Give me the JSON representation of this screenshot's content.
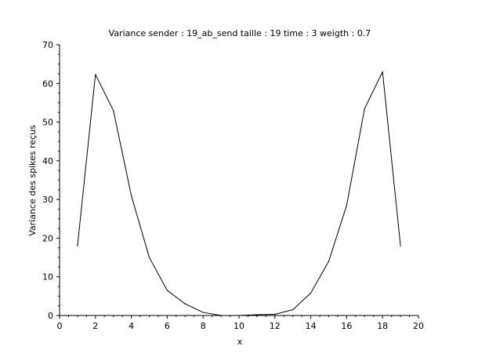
{
  "chart_data": {
    "type": "line",
    "title": "Variance sender : 19_ab_send taille : 19 time : 3 weigth : 0.7",
    "xlabel": "x",
    "ylabel": "Variance des spikes reçus",
    "xlim": [
      0,
      20
    ],
    "ylim": [
      0,
      70
    ],
    "xticks": [
      0,
      2,
      4,
      6,
      8,
      10,
      12,
      14,
      16,
      18,
      20
    ],
    "yticks": [
      0,
      10,
      20,
      30,
      40,
      50,
      60,
      70
    ],
    "grid": false,
    "series": [
      {
        "color": "#000000",
        "x": [
          1,
          2,
          3,
          4,
          5,
          6,
          7,
          8,
          9,
          10,
          11,
          12,
          13,
          14,
          15,
          16,
          17,
          18,
          19
        ],
        "y": [
          18,
          62.3,
          53,
          31,
          15,
          6.5,
          3,
          0.8,
          0,
          0,
          0.2,
          0.3,
          1.5,
          5.8,
          14,
          28.5,
          53.5,
          63,
          18
        ]
      }
    ]
  }
}
